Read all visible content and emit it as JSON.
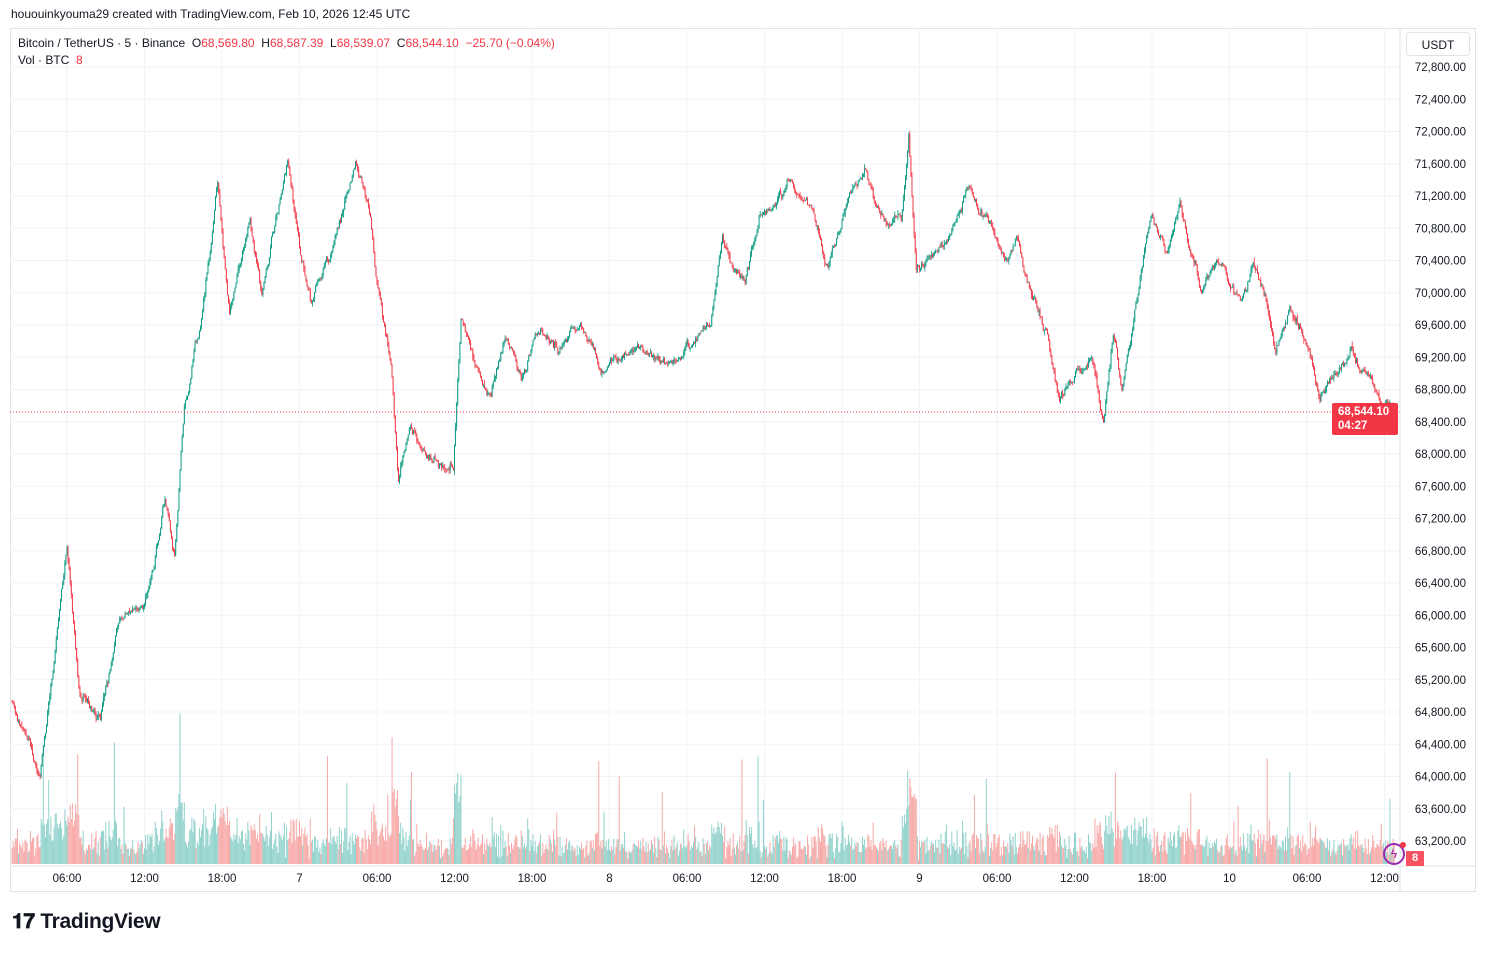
{
  "credit": "hououinkyouma29 created with TradingView.com, Feb 10, 2026 12:45 UTC",
  "legend": {
    "symbol": "Bitcoin / TetherUS · 5 · Binance",
    "o_label": "O",
    "open": "68,569.80",
    "h_label": "H",
    "high": "68,587.39",
    "l_label": "L",
    "low": "68,539.07",
    "c_label": "C",
    "close": "68,544.10",
    "change": "−25.70 (−0.04%)",
    "vol_label": "Vol · BTC",
    "vol_value": "8"
  },
  "currency": "USDT",
  "last_price": "68,544.10",
  "countdown": "04:27",
  "volume_tag": "8",
  "logo": "TradingView",
  "colors": {
    "up": "#089981",
    "down": "#f23645",
    "vol_up": "#92d2cc",
    "vol_down": "#f7a9a7",
    "grid": "#f0f3fa"
  },
  "chart_data": {
    "type": "candlestick",
    "interval": "5m",
    "exchange": "Binance",
    "price_ticks": [
      "72,800.00",
      "72,400.00",
      "72,000.00",
      "71,600.00",
      "71,200.00",
      "70,800.00",
      "70,400.00",
      "70,000.00",
      "69,600.00",
      "69,200.00",
      "68,800.00",
      "68,400.00",
      "68,000.00",
      "67,600.00",
      "67,200.00",
      "66,800.00",
      "66,400.00",
      "66,000.00",
      "65,600.00",
      "65,200.00",
      "64,800.00",
      "64,400.00",
      "64,000.00",
      "63,600.00",
      "63,200.00"
    ],
    "ylim": [
      63200,
      72800
    ],
    "time_ticks": [
      "06:00",
      "12:00",
      "18:00",
      "7",
      "06:00",
      "12:00",
      "18:00",
      "8",
      "06:00",
      "12:00",
      "18:00",
      "9",
      "06:00",
      "12:00",
      "18:00",
      "10",
      "06:00",
      "12:00"
    ],
    "grid": true,
    "price_path": [
      [
        "2026-02-06T01:45",
        64949
      ],
      [
        "2026-02-06T03:55",
        63957
      ],
      [
        "2026-02-06T06:00",
        66809
      ],
      [
        "2026-02-06T07:00",
        65073
      ],
      [
        "2026-02-06T08:35",
        64700
      ],
      [
        "2026-02-06T10:05",
        65941
      ],
      [
        "2026-02-06T12:00",
        66189
      ],
      [
        "2026-02-06T13:35",
        67429
      ],
      [
        "2026-02-06T14:20",
        66685
      ],
      [
        "2026-02-06T15:05",
        68422
      ],
      [
        "2026-02-06T16:15",
        69538
      ],
      [
        "2026-02-06T17:40",
        71398
      ],
      [
        "2026-02-06T18:35",
        69662
      ],
      [
        "2026-02-06T20:10",
        70902
      ],
      [
        "2026-02-06T21:05",
        70034
      ],
      [
        "2026-02-06T23:05",
        71647
      ],
      [
        "2026-02-07T00:05",
        70530
      ],
      [
        "2026-02-07T00:50",
        69910
      ],
      [
        "2026-02-07T02:25",
        70530
      ],
      [
        "2026-02-07T04:25",
        71584
      ],
      [
        "2026-02-07T05:30",
        71026
      ],
      [
        "2026-02-07T05:55",
        70282
      ],
      [
        "2026-02-07T07:05",
        69166
      ],
      [
        "2026-02-07T07:40",
        67553
      ],
      [
        "2026-02-07T08:35",
        68422
      ],
      [
        "2026-02-07T09:20",
        68049
      ],
      [
        "2026-02-07T10:55",
        67801
      ],
      [
        "2026-02-07T11:55",
        67801
      ],
      [
        "2026-02-07T12:30",
        69662
      ],
      [
        "2026-02-07T13:40",
        69042
      ],
      [
        "2026-02-07T14:50",
        68670
      ],
      [
        "2026-02-07T16:00",
        69538
      ],
      [
        "2026-02-07T17:10",
        68918
      ],
      [
        "2026-02-07T18:40",
        69538
      ],
      [
        "2026-02-07T20:15",
        69352
      ],
      [
        "2026-02-07T21:45",
        69600
      ],
      [
        "2026-02-07T23:20",
        69042
      ],
      [
        "2026-02-08T00:50",
        69166
      ],
      [
        "2026-02-08T02:25",
        69414
      ],
      [
        "2026-02-08T03:55",
        69166
      ],
      [
        "2026-02-08T06:15",
        69290
      ],
      [
        "2026-02-08T07:50",
        69662
      ],
      [
        "2026-02-08T08:45",
        70654
      ],
      [
        "2026-02-08T09:45",
        70282
      ],
      [
        "2026-02-08T10:30",
        70034
      ],
      [
        "2026-02-08T11:40",
        70902
      ],
      [
        "2026-02-08T14:00",
        71398
      ],
      [
        "2026-02-08T15:35",
        71150
      ],
      [
        "2026-02-08T16:55",
        70406
      ],
      [
        "2026-02-08T18:40",
        71274
      ],
      [
        "2026-02-08T19:50",
        71398
      ],
      [
        "2026-02-08T21:00",
        70902
      ],
      [
        "2026-02-08T22:35",
        70778
      ],
      [
        "2026-02-08T23:10",
        71894
      ],
      [
        "2026-02-08T23:45",
        70282
      ],
      [
        "2026-02-09T00:55",
        70406
      ],
      [
        "2026-02-09T02:05",
        70654
      ],
      [
        "2026-02-09T03:50",
        71336
      ],
      [
        "2026-02-09T05:35",
        70902
      ],
      [
        "2026-02-09T06:45",
        70406
      ],
      [
        "2026-02-09T07:30",
        70654
      ],
      [
        "2026-02-09T08:40",
        69910
      ],
      [
        "2026-02-09T09:50",
        69538
      ],
      [
        "2026-02-09T10:50",
        68546
      ],
      [
        "2026-02-09T11:45",
        68918
      ],
      [
        "2026-02-09T13:20",
        69166
      ],
      [
        "2026-02-09T14:15",
        68422
      ],
      [
        "2026-02-09T15:00",
        69538
      ],
      [
        "2026-02-09T15:40",
        68918
      ],
      [
        "2026-02-09T16:50",
        69910
      ],
      [
        "2026-02-09T18:00",
        70902
      ],
      [
        "2026-02-09T19:10",
        70406
      ],
      [
        "2026-02-09T20:10",
        71026
      ],
      [
        "2026-02-09T21:05",
        70406
      ],
      [
        "2026-02-09T21:50",
        70034
      ],
      [
        "2026-02-09T23:00",
        70406
      ],
      [
        "2026-02-10T00:55",
        69910
      ],
      [
        "2026-02-10T01:50",
        70406
      ],
      [
        "2026-02-10T02:50",
        70034
      ],
      [
        "2026-02-10T03:35",
        69290
      ],
      [
        "2026-02-10T04:45",
        69786
      ],
      [
        "2026-02-10T06:00",
        69414
      ],
      [
        "2026-02-10T07:00",
        68794
      ],
      [
        "2026-02-10T08:20",
        69042
      ],
      [
        "2026-02-10T09:25",
        69290
      ],
      [
        "2026-02-10T10:55",
        68980
      ],
      [
        "2026-02-10T11:50",
        68546
      ],
      [
        "2026-02-10T12:45",
        68544.1
      ]
    ]
  }
}
